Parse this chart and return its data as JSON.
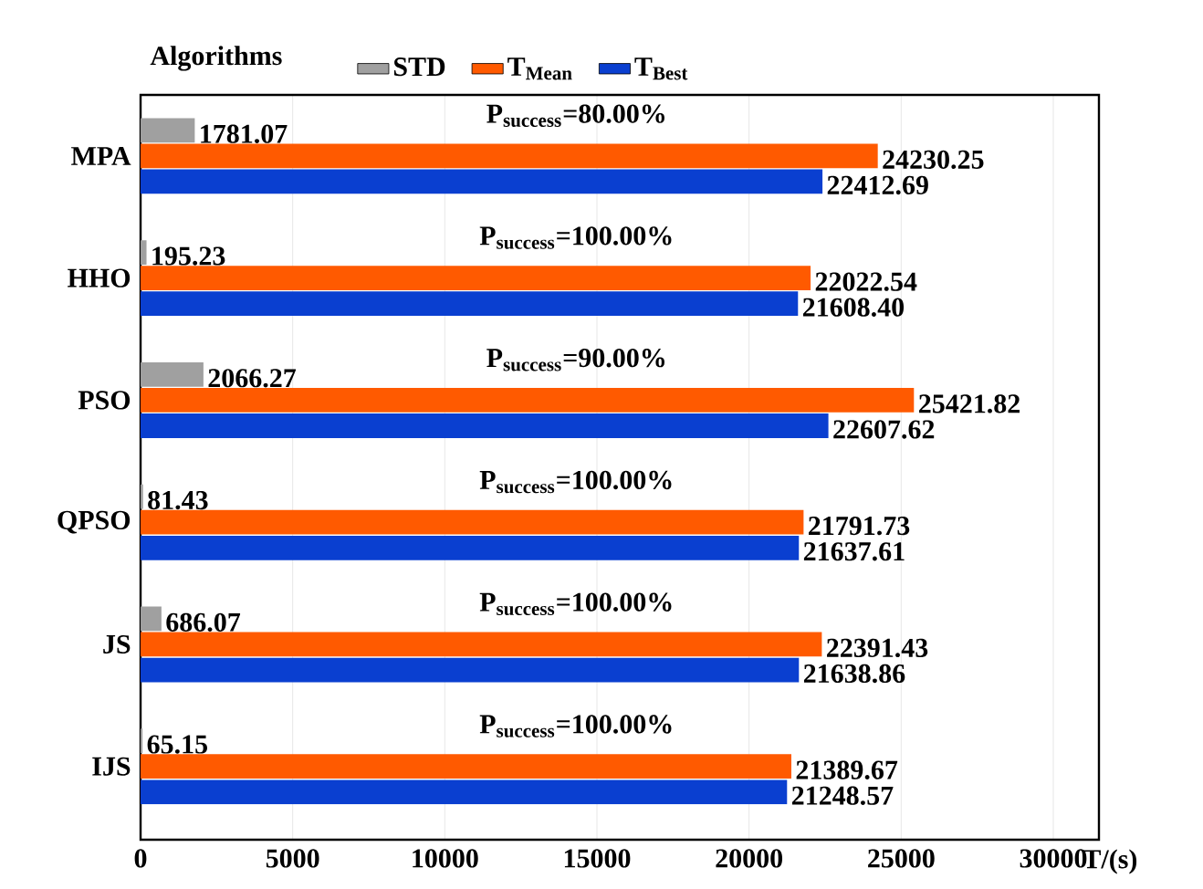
{
  "chart_data": {
    "type": "bar",
    "orientation": "horizontal",
    "ylabel": "Algorithms",
    "xlabel": "T/(s)",
    "categories": [
      "MPA",
      "HHO",
      "PSO",
      "QPSO",
      "JS",
      "IJS"
    ],
    "series": [
      {
        "name": "STD",
        "color": "#a0a0a0",
        "values": [
          1781.07,
          195.23,
          2066.27,
          81.43,
          686.07,
          65.15
        ],
        "value_labels": [
          "1781.07",
          "195.23",
          "2066.27",
          "81.43",
          "686.07",
          "65.15"
        ]
      },
      {
        "name": "T$_{Mean}$",
        "color": "#ff5a00",
        "values": [
          24230.25,
          22022.54,
          25421.82,
          21791.73,
          22391.43,
          21389.67
        ],
        "value_labels": [
          "24230.25",
          "22022.54",
          "25421.82",
          "21791.73",
          "22391.43",
          "21389.67"
        ]
      },
      {
        "name": "T$_{Best}$",
        "color": "#0a3fd0",
        "values": [
          22412.69,
          21608.4,
          22607.62,
          21637.61,
          21638.86,
          21248.57
        ],
        "value_labels": [
          "22412.69",
          "21608.40",
          "22607.62",
          "21637.61",
          "21638.86",
          "21248.57"
        ]
      }
    ],
    "xlim": [
      0,
      31500
    ],
    "xticks": [
      0,
      5000,
      10000,
      15000,
      20000,
      25000,
      30000
    ],
    "grid": "x",
    "legend": "top",
    "annotations": [
      "P$_{success}$=80.00%",
      "P$_{success}$=100.00%",
      "P$_{success}$=90.00%",
      "P$_{success}$=100.00%",
      "P$_{success}$=100.00%",
      "P$_{success}$=100.00%"
    ]
  }
}
